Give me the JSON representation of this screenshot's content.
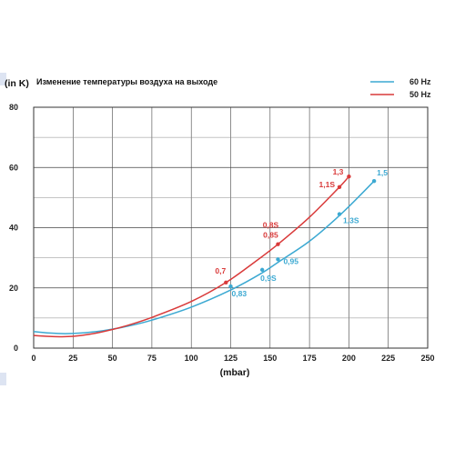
{
  "chart_data": {
    "type": "line",
    "title": "Изменение температуры воздуха на выходе",
    "ylabel": "(in K)",
    "xlabel": "(mbar)",
    "xlim": [
      0,
      250
    ],
    "ylim": [
      0,
      80
    ],
    "xticks": [
      "0",
      "25",
      "50",
      "75",
      "100",
      "125",
      "150",
      "175",
      "200",
      "225",
      "250"
    ],
    "yticks": [
      "0",
      "20",
      "40",
      "60",
      "80"
    ],
    "grid": true,
    "legend_position": "top-right",
    "series": [
      {
        "name": "60 Hz",
        "color": "#3ca9d2",
        "curve": [
          [
            0,
            5.5
          ],
          [
            10,
            5.0
          ],
          [
            20,
            4.8
          ],
          [
            30,
            5.0
          ],
          [
            40,
            5.5
          ],
          [
            50,
            6.3
          ],
          [
            60,
            7.3
          ],
          [
            75,
            9.3
          ],
          [
            100,
            13.6
          ],
          [
            125,
            19.3
          ],
          [
            145,
            25.0
          ],
          [
            155,
            28.5
          ],
          [
            175,
            35.5
          ],
          [
            195,
            44.5
          ],
          [
            216,
            55.5
          ]
        ],
        "points": [
          {
            "x": 125,
            "y": 20.5,
            "label": "0,83"
          },
          {
            "x": 145,
            "y": 26,
            "label": "0,9S"
          },
          {
            "x": 155,
            "y": 29.5,
            "label": "0,95"
          },
          {
            "x": 194,
            "y": 44.5,
            "label": "1,3S"
          },
          {
            "x": 216,
            "y": 55.5,
            "label": "1,5"
          }
        ]
      },
      {
        "name": "50 Hz",
        "color": "#d93a3a",
        "curve": [
          [
            0,
            4.2
          ],
          [
            10,
            3.9
          ],
          [
            20,
            3.8
          ],
          [
            30,
            4.2
          ],
          [
            40,
            5.0
          ],
          [
            50,
            6.2
          ],
          [
            60,
            7.6
          ],
          [
            75,
            10.2
          ],
          [
            100,
            15.5
          ],
          [
            122,
            21.8
          ],
          [
            140,
            28.5
          ],
          [
            155,
            34.5
          ],
          [
            175,
            43.5
          ],
          [
            194,
            53.5
          ],
          [
            200,
            57
          ]
        ],
        "points": [
          {
            "x": 122,
            "y": 21.8,
            "label": "0,7"
          },
          {
            "x": 155,
            "y": 34.5,
            "label": "0,85"
          },
          {
            "x": 155,
            "y": 34.5,
            "label": "0,8S"
          },
          {
            "x": 194,
            "y": 53.5,
            "label": "1,1S"
          },
          {
            "x": 200,
            "y": 57,
            "label": "1,3"
          }
        ]
      }
    ]
  }
}
